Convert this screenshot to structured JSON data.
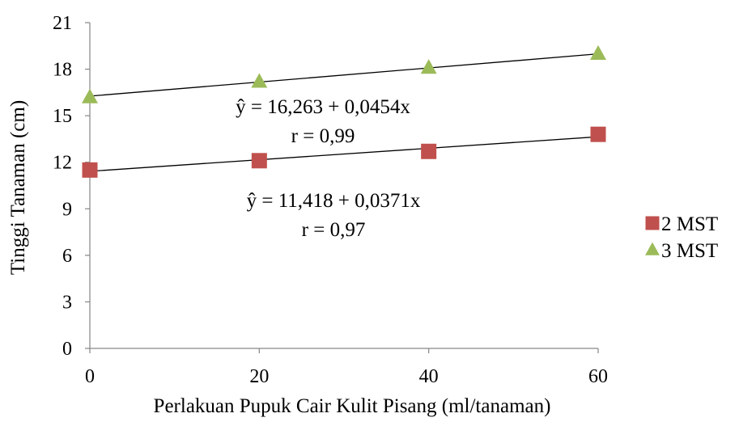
{
  "chart_data": {
    "type": "scatter",
    "title": "",
    "xlabel": "Perlakuan Pupuk Cair Kulit Pisang (ml/tanaman)",
    "ylabel": "Tinggi Tanaman (cm)",
    "x": [
      0,
      20,
      40,
      60
    ],
    "x_ticks": [
      "0",
      "20",
      "40",
      "60"
    ],
    "y_ticks": [
      "0",
      "3",
      "6",
      "9",
      "12",
      "15",
      "18",
      "21"
    ],
    "xlim": [
      0,
      60
    ],
    "ylim": [
      0,
      21
    ],
    "grid": false,
    "legend_position": "right",
    "series": [
      {
        "name": "2 MST",
        "marker": "square",
        "color": "#C0504D",
        "values": [
          11.5,
          12.1,
          12.7,
          13.8
        ],
        "trendline": {
          "intercept": 11.418,
          "slope": 0.0371
        },
        "equation": "ŷ = 11,418 + 0,0371x",
        "r_text": "r = 0,97"
      },
      {
        "name": "3 MST",
        "marker": "triangle",
        "color": "#9BBB59",
        "values": [
          16.2,
          17.2,
          18.1,
          19.0
        ],
        "trendline": {
          "intercept": 16.263,
          "slope": 0.0454
        },
        "equation": "ŷ = 16,263 + 0,0454x",
        "r_text": "r = 0,99"
      }
    ]
  }
}
